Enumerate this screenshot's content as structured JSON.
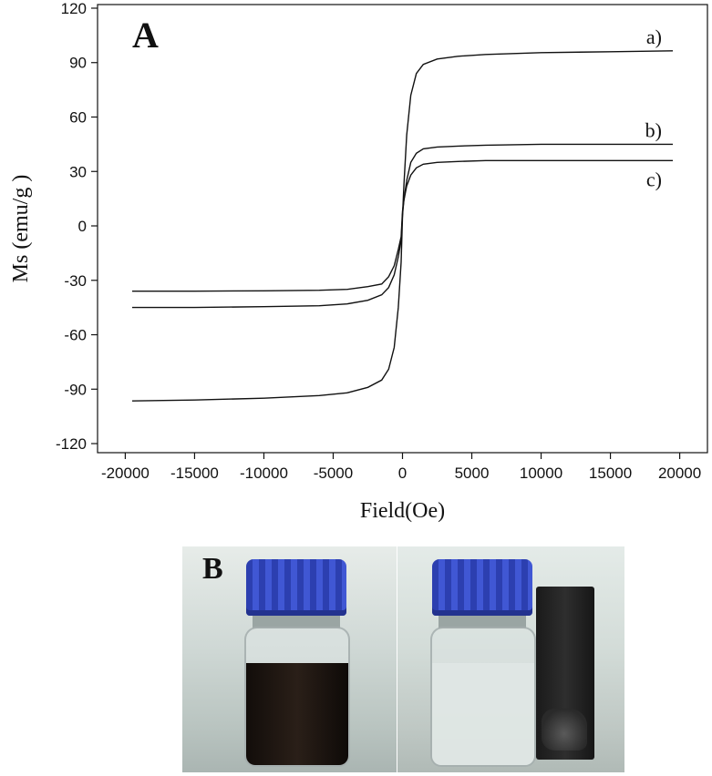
{
  "chart_data": {
    "type": "line",
    "panel_label": "A",
    "xlabel": "Field(Oe)",
    "ylabel": "Ms (emu/g )",
    "xlim": [
      -22000,
      22000
    ],
    "ylim": [
      -125,
      122
    ],
    "x_ticks": [
      -20000,
      -15000,
      -10000,
      -5000,
      0,
      5000,
      10000,
      15000,
      20000
    ],
    "y_ticks": [
      -120,
      -90,
      -60,
      -30,
      0,
      30,
      60,
      90,
      120
    ],
    "grid": false,
    "legend": "inline labels at right end of curves",
    "series": [
      {
        "name": "a)",
        "x": [
          -19500,
          -15000,
          -10000,
          -6000,
          -4000,
          -2500,
          -1500,
          -1000,
          -600,
          -300,
          -100,
          0,
          100,
          300,
          600,
          1000,
          1500,
          2500,
          4000,
          6000,
          10000,
          15000,
          19500
        ],
        "y": [
          -96.5,
          -96,
          -95,
          -93.5,
          -92,
          -89,
          -85,
          -79,
          -67,
          -45,
          -20,
          5,
          22,
          50,
          72,
          84,
          89,
          92,
          93.5,
          94.5,
          95.5,
          96,
          96.5
        ]
      },
      {
        "name": "b)",
        "x": [
          -19500,
          -15000,
          -10000,
          -6000,
          -4000,
          -2500,
          -1500,
          -1000,
          -600,
          -300,
          -100,
          0,
          100,
          300,
          600,
          1000,
          1500,
          2500,
          4000,
          6000,
          10000,
          15000,
          19500
        ],
        "y": [
          -45,
          -45,
          -44.5,
          -44,
          -43,
          -41,
          -38,
          -34,
          -27,
          -17,
          -8,
          6,
          14,
          25,
          35,
          40,
          42.5,
          43.5,
          44,
          44.5,
          45,
          45,
          45
        ]
      },
      {
        "name": "c)",
        "x": [
          -19500,
          -15000,
          -10000,
          -6000,
          -4000,
          -3000,
          -2500,
          -1500,
          -1000,
          -600,
          -300,
          -100,
          0,
          100,
          300,
          600,
          1000,
          1500,
          2500,
          4000,
          6000,
          10000,
          15000,
          19500
        ],
        "y": [
          -36,
          -36,
          -35.8,
          -35.5,
          -35,
          -34,
          -33.5,
          -32,
          -28,
          -22,
          -13,
          -6,
          8,
          14,
          22,
          28,
          32,
          34,
          35,
          35.5,
          36,
          36,
          36,
          36
        ]
      }
    ]
  },
  "photo_panel": {
    "label": "B",
    "left_photo": "dispersed-nanoparticle-bottle",
    "right_photo": "magnet-separated-bottle",
    "colors": {
      "cap": "#3a4fcc",
      "dark_liquid": "#1b1410",
      "clear_liquid": "#d9e0dc",
      "magnet": "#222222"
    }
  }
}
